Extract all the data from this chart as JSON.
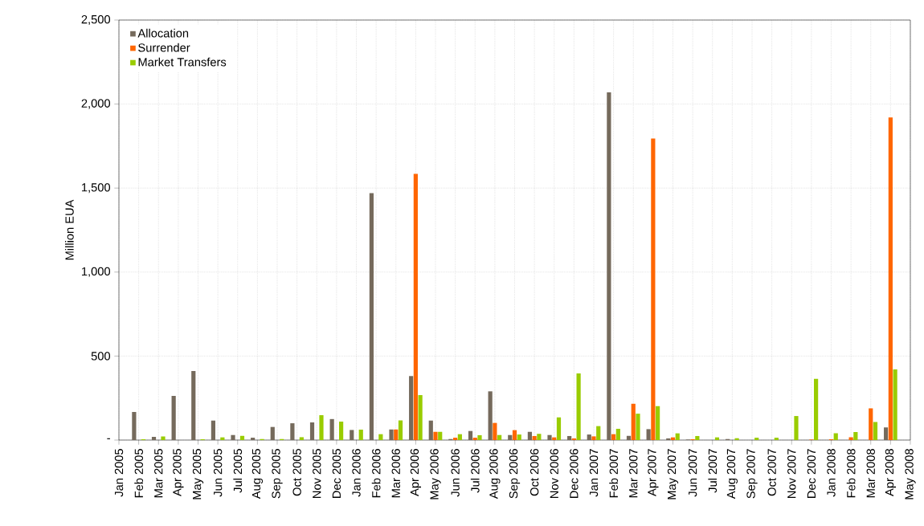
{
  "chart_data": {
    "type": "bar",
    "ylabel": "Million EUA",
    "categories": [
      "Jan 2005",
      "Feb 2005",
      "Mar 2005",
      "Apr 2005",
      "May 2005",
      "Jun 2005",
      "Jul 2005",
      "Aug 2005",
      "Sep 2005",
      "Oct 2005",
      "Nov 2005",
      "Dec 2005",
      "Jan 2006",
      "Feb 2006",
      "Mar 2006",
      "Apr 2006",
      "May 2006",
      "Jun 2006",
      "Jul 2006",
      "Aug 2006",
      "Sep 2006",
      "Oct 2006",
      "Nov 2006",
      "Dec 2006",
      "Jan 2007",
      "Feb 2007",
      "Mar 2007",
      "Apr 2007",
      "May 2007",
      "Jun 2007",
      "Jul 2007",
      "Aug 2007",
      "Sep 2007",
      "Oct 2007",
      "Nov 2007",
      "Dec 2007",
      "Jan 2008",
      "Feb 2008",
      "Mar 2008",
      "Apr 2008",
      "May 2008"
    ],
    "series": [
      {
        "name": "Allocation",
        "color": "#756a5c",
        "values": [
          null,
          167,
          19,
          263,
          411,
          116,
          30,
          14,
          78,
          100,
          105,
          125,
          60,
          1470,
          63,
          381,
          116,
          6,
          54,
          290,
          30,
          49,
          30,
          24,
          33,
          2070,
          25,
          65,
          10,
          3,
          0,
          6,
          0,
          0,
          0,
          0,
          0,
          0,
          0,
          75,
          null
        ]
      },
      {
        "name": "Surrender",
        "color": "#ff6600",
        "values": [
          null,
          0,
          0,
          0,
          0,
          0,
          0,
          0,
          0,
          0,
          0,
          0,
          0,
          0,
          63,
          1585,
          49,
          14,
          14,
          102,
          59,
          24,
          16,
          10,
          22,
          35,
          216,
          1795,
          16,
          5,
          0,
          0,
          0,
          0,
          0,
          3,
          5,
          17,
          189,
          1920,
          null
        ]
      },
      {
        "name": "Market Transfers",
        "color": "#99cc00",
        "values": [
          null,
          5,
          21,
          0,
          5,
          16,
          25,
          6,
          6,
          17,
          148,
          110,
          62,
          35,
          117,
          268,
          49,
          35,
          29,
          30,
          33,
          37,
          135,
          397,
          83,
          67,
          157,
          202,
          40,
          24,
          16,
          11,
          14,
          14,
          143,
          365,
          40,
          48,
          108,
          421,
          null
        ]
      }
    ],
    "ylim": [
      0,
      2500
    ],
    "yticks": [
      {
        "value": 0,
        "label": "-"
      },
      {
        "value": 500,
        "label": "500"
      },
      {
        "value": 1000,
        "label": "1,000"
      },
      {
        "value": 1500,
        "label": "1,500"
      },
      {
        "value": 2000,
        "label": "2,000"
      },
      {
        "value": 2500,
        "label": "2,500"
      }
    ],
    "grid": true,
    "legend": "top left"
  }
}
